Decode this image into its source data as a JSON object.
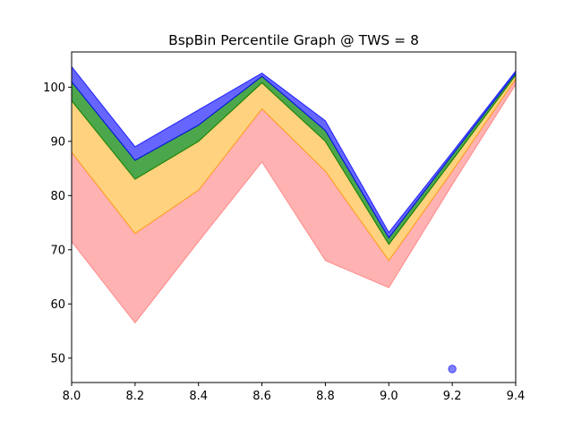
{
  "chart_data": {
    "type": "area",
    "title": "BspBin Percentile Graph @ TWS = 8",
    "xlabel": "",
    "ylabel": "",
    "xlim": [
      8.0,
      9.4
    ],
    "ylim": [
      45.5,
      106.5
    ],
    "x_ticks": [
      "8.0",
      "8.2",
      "8.4",
      "8.6",
      "8.8",
      "9.0",
      "9.2",
      "9.4"
    ],
    "y_ticks": [
      "50",
      "60",
      "70",
      "80",
      "90",
      "100"
    ],
    "x": [
      8.0,
      8.2,
      8.4,
      8.6,
      8.8,
      9.0,
      9.2,
      9.4
    ],
    "bands": [
      {
        "color": "#ff0000",
        "opacity": 0.3,
        "edge": "#ff4444",
        "lower": [
          71.5,
          56.5,
          71.5,
          86.2,
          68.0,
          63.0,
          82.0,
          100.5
        ],
        "upper": [
          88.0,
          73.0,
          81.0,
          96.0,
          84.5,
          68.0,
          84.5,
          101.5
        ]
      },
      {
        "color": "#ffa500",
        "opacity": 0.5,
        "edge": "#ffa500",
        "lower": [
          88.0,
          73.0,
          81.0,
          96.0,
          84.5,
          68.0,
          84.5,
          101.5
        ],
        "upper": [
          97.5,
          83.0,
          90.0,
          100.8,
          90.0,
          71.0,
          86.5,
          102.2
        ]
      },
      {
        "color": "#008000",
        "opacity": 0.7,
        "edge": "#008000",
        "lower": [
          97.5,
          83.0,
          90.0,
          100.8,
          90.0,
          71.0,
          86.5,
          102.2
        ],
        "upper": [
          101.0,
          86.5,
          93.0,
          102.0,
          92.0,
          72.2,
          87.5,
          102.6
        ]
      },
      {
        "color": "#0000ff",
        "opacity": 0.6,
        "edge": "#0000ff",
        "lower": [
          101.0,
          86.5,
          93.0,
          102.0,
          92.0,
          72.2,
          87.5,
          102.6
        ],
        "upper": [
          103.8,
          89.0,
          95.8,
          102.6,
          93.8,
          73.2,
          88.0,
          103.0
        ]
      }
    ],
    "points": [
      {
        "x": 9.2,
        "y": 48.0,
        "color": "#0000ff",
        "opacity": 0.5
      }
    ]
  }
}
